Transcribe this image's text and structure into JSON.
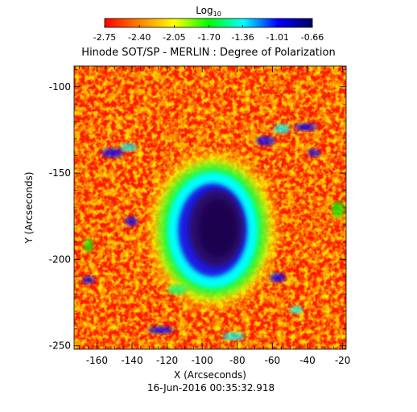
{
  "chart_data": {
    "type": "heatmap",
    "title": "Hinode SOT/SP - MERLIN : Degree of Polarization",
    "xlabel": "X (Arcseconds)",
    "ylabel": "Y (Arcseconds)",
    "xlim": [
      -173,
      -18
    ],
    "ylim": [
      -252,
      -88
    ],
    "xticks": [
      "-160",
      "-140",
      "-120",
      "-100",
      "-80",
      "-60",
      "-40",
      "-20"
    ],
    "yticks": [
      "-100",
      "-150",
      "-200",
      "-250"
    ],
    "colorbar": {
      "title_base": "Log",
      "title_sub": "10",
      "range": [
        -2.75,
        -0.66
      ],
      "ticks": [
        "-2.75",
        "-2.40",
        "-2.05",
        "-1.70",
        "-1.36",
        "-1.01",
        "-0.66"
      ],
      "colormap": [
        "#ff0000",
        "#ff8000",
        "#ffff00",
        "#00ff00",
        "#00ffff",
        "#0000ff",
        "#000060"
      ]
    },
    "timestamp": "16-Jun-2016 00:35:32.918",
    "features": [
      {
        "kind": "umbra",
        "x": -92,
        "y": -182,
        "value": -0.7
      },
      {
        "kind": "penumbra",
        "x": -94,
        "y": -183,
        "value": -1.2
      }
    ]
  }
}
